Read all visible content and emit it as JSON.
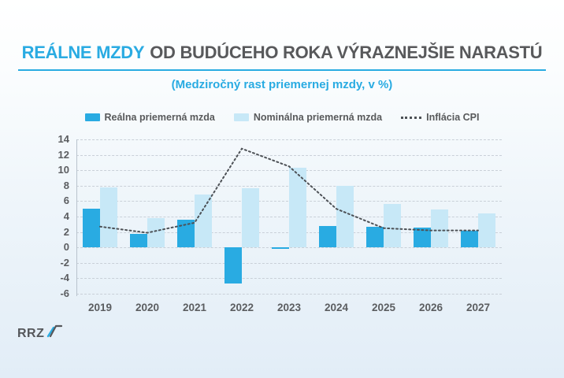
{
  "header": {
    "title_highlight": "REÁLNE MZDY",
    "title_rest": "OD BUDÚCEHO ROKA VÝRAZNEJŠIE NARASTÚ",
    "subtitle": "(Medziročný rast priemernej mzdy, v %)",
    "accent_color": "#29abe2"
  },
  "footer": {
    "logo_text": "RRZ"
  },
  "colors": {
    "accent": "#29abe2",
    "real_bar": "#29abe2",
    "nominal_bar": "#c7e8f7",
    "cpi_line": "#4d5156",
    "text_dark": "#58595b",
    "gridline": "#c9d0d8"
  },
  "chart_data": {
    "type": "bar",
    "title": "REÁLNE MZDY OD BUDÚCEHO ROKA VÝRAZNEJŠIE NARASTÚ",
    "subtitle": "(Medziročný rast priemernej mzdy, v %)",
    "categories": [
      "2019",
      "2020",
      "2021",
      "2022",
      "2023",
      "2024",
      "2025",
      "2026",
      "2027"
    ],
    "series": [
      {
        "name": "Reálna priemerná mzda",
        "type": "bar",
        "color": "#29abe2",
        "values": [
          5.0,
          1.8,
          3.6,
          -4.7,
          -0.2,
          2.8,
          2.7,
          2.6,
          2.2
        ]
      },
      {
        "name": "Nominálna priemerná mzda",
        "type": "bar",
        "color": "#c7e8f7",
        "values": [
          7.8,
          3.8,
          6.9,
          7.7,
          10.3,
          8.0,
          5.6,
          4.9,
          4.4
        ]
      },
      {
        "name": "Inflácia CPI",
        "type": "line",
        "line_style": "dotted",
        "color": "#4d5156",
        "values": [
          2.7,
          1.9,
          3.2,
          12.8,
          10.5,
          5.0,
          2.5,
          2.2,
          2.2
        ]
      }
    ],
    "ylim": [
      -6,
      14
    ],
    "ytick_step": 2,
    "xlabel": "",
    "ylabel": "",
    "grid": true,
    "legend_position": "top"
  }
}
